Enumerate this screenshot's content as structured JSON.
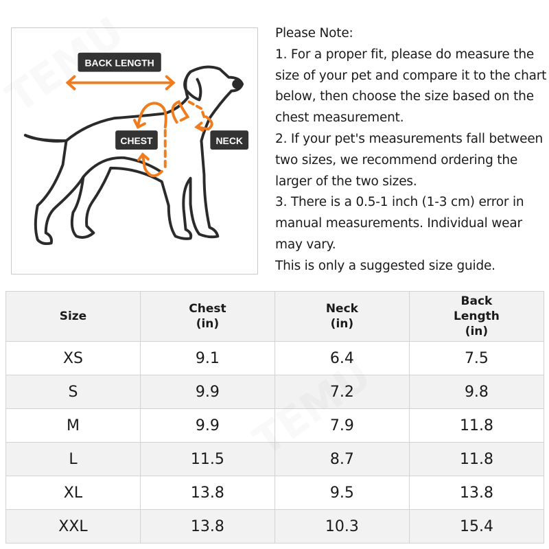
{
  "illustration": {
    "labels": {
      "back_length": "BACK LENGTH",
      "chest": "CHEST",
      "neck": "NECK"
    },
    "colors": {
      "accent": "#f07c1e",
      "outline": "#2b2b2b",
      "label_bg": "#333333"
    }
  },
  "notes": [
    "Please Note:",
    "1. For a proper fit, please do measure the",
    "size of your pet and compare it to the chart",
    "below, then choose the size based on the",
    "chest measurement.",
    "2. If your pet's measurements fall between",
    "two sizes, we recommend ordering the",
    "larger of the two sizes.",
    "3. There is a 0.5-1 inch (1-3 cm) error in",
    "manual measurements. Individual wear",
    "may vary.",
    "This is only a suggested size guide."
  ],
  "table": {
    "headers": [
      [
        "Size"
      ],
      [
        "Chest",
        "(in)"
      ],
      [
        "Neck",
        "(in)"
      ],
      [
        "Back",
        "Length",
        "(in)"
      ]
    ],
    "rows": [
      [
        "XS",
        "9.1",
        "6.4",
        "7.5"
      ],
      [
        "S",
        "9.9",
        "7.2",
        "9.8"
      ],
      [
        "M",
        "9.9",
        "7.9",
        "11.8"
      ],
      [
        "L",
        "11.5",
        "8.7",
        "11.8"
      ],
      [
        "XL",
        "13.8",
        "9.5",
        "13.8"
      ],
      [
        "XXL",
        "13.8",
        "10.3",
        "15.4"
      ]
    ]
  },
  "watermark": "TEMU"
}
